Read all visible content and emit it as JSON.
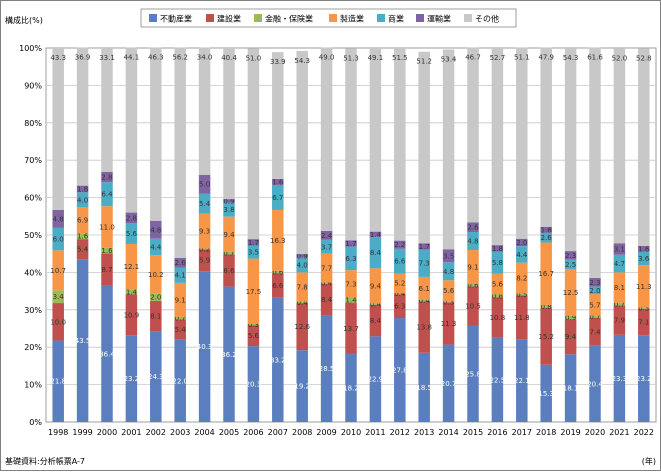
{
  "chart_data": {
    "type": "bar",
    "stacked": true,
    "ylabel": "構成比(%)",
    "xunit": "(年)",
    "source": "基礎資料:分析帳票A-7",
    "ylim": [
      0,
      100
    ],
    "yticks": [
      "0%",
      "10%",
      "20%",
      "30%",
      "40%",
      "50%",
      "60%",
      "70%",
      "80%",
      "90%",
      "100%"
    ],
    "grid": true,
    "legend_position": "top",
    "categories": [
      "1998",
      "1999",
      "2000",
      "2001",
      "2002",
      "2003",
      "2004",
      "2005",
      "2006",
      "2007",
      "2008",
      "2009",
      "2010",
      "2011",
      "2012",
      "2013",
      "2014",
      "2015",
      "2016",
      "2017",
      "2018",
      "2019",
      "2020",
      "2021",
      "2022"
    ],
    "series": [
      {
        "name": "不動産業",
        "color": "#5b7fbe",
        "values": [
          21.8,
          43.5,
          36.4,
          23.2,
          24.3,
          22.0,
          40.3,
          36.2,
          20.3,
          33.2,
          19.2,
          28.5,
          18.2,
          22.9,
          27.8,
          18.5,
          20.7,
          25.8,
          22.5,
          22.1,
          15.3,
          18.1,
          20.4,
          23.3,
          23.2
        ]
      },
      {
        "name": "建設業",
        "color": "#c0504d",
        "values": [
          10.0,
          5.4,
          8.7,
          10.9,
          8.1,
          5.4,
          5.9,
          8.6,
          5.6,
          6.6,
          12.6,
          8.4,
          13.7,
          8.4,
          6.3,
          13.8,
          11.3,
          10.5,
          10.8,
          11.8,
          15.2,
          9.4,
          7.4,
          7.9,
          7.1
        ]
      },
      {
        "name": "金融・保険業",
        "color": "#9bbb59",
        "values": [
          3.4,
          1.6,
          1.6,
          1.4,
          2.0,
          0.7,
          0.2,
          0.7,
          0.3,
          0.6,
          0.4,
          0.4,
          1.4,
          0.4,
          0.4,
          0.4,
          0.3,
          0.6,
          0.8,
          0.5,
          0.8,
          0.9,
          0.7,
          0.7,
          0.3
        ]
      },
      {
        "name": "製造業",
        "color": "#f79646",
        "values": [
          10.7,
          6.9,
          11.0,
          12.1,
          10.2,
          9.1,
          9.3,
          9.4,
          17.5,
          16.3,
          7.8,
          7.7,
          7.3,
          9.4,
          5.2,
          6.1,
          5.6,
          9.1,
          5.6,
          8.2,
          16.7,
          12.5,
          5.7,
          8.1,
          11.3
        ]
      },
      {
        "name": "商業",
        "color": "#4bacc6",
        "values": [
          6.0,
          4.0,
          6.4,
          5.6,
          4.4,
          4.1,
          5.4,
          3.8,
          3.5,
          6.7,
          4.0,
          3.7,
          6.3,
          8.4,
          6.6,
          7.3,
          4.8,
          4.8,
          5.8,
          4.4,
          2.6,
          2.5,
          2.0,
          4.7,
          3.6
        ]
      },
      {
        "name": "運輸業",
        "color": "#8064a2",
        "values": [
          4.8,
          1.8,
          2.8,
          2.8,
          4.8,
          2.6,
          5.0,
          0.9,
          1.7,
          1.6,
          0.9,
          2.4,
          1.7,
          1.4,
          2.2,
          1.7,
          3.5,
          2.6,
          1.8,
          2.0,
          1.6,
          2.3,
          2.3,
          3.1,
          1.6
        ]
      },
      {
        "name": "その他",
        "color": "#c8c8c8",
        "values": [
          43.3,
          36.9,
          33.1,
          44.1,
          46.3,
          56.2,
          34.0,
          40.4,
          51.0,
          33.9,
          54.3,
          49.0,
          51.3,
          49.1,
          51.5,
          51.2,
          53.4,
          46.7,
          52.7,
          51.1,
          47.9,
          54.3,
          61.6,
          52.0,
          52.8
        ]
      }
    ]
  }
}
